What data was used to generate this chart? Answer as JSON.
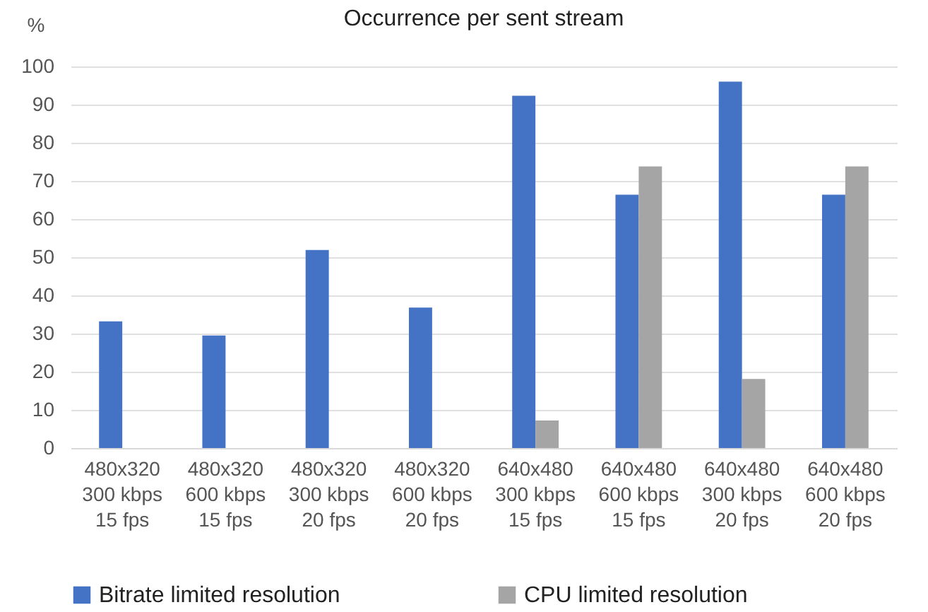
{
  "chart_data": {
    "type": "bar",
    "title": "Occurrence per sent stream",
    "ylabel": "%",
    "categories": [
      "480x320\n300 kbps\n15 fps",
      "480x320\n600 kbps\n15 fps",
      "480x320\n300 kbps\n20 fps",
      "480x320\n600 kbps\n20 fps",
      "640x480\n300 kbps\n15 fps",
      "640x480\n600 kbps\n15 fps",
      "640x480\n300 kbps\n20 fps",
      "640x480\n600 kbps\n20 fps"
    ],
    "series": [
      {
        "name": "Bitrate limited resolution",
        "color": "#4472c4",
        "values": [
          33.2,
          29.5,
          51.9,
          36.8,
          92.3,
          66.4,
          96,
          66.4
        ]
      },
      {
        "name": "CPU limited resolution",
        "color": "#a5a5a5",
        "values": [
          0,
          0,
          0,
          0,
          7.2,
          73.8,
          18.1,
          73.8
        ]
      }
    ],
    "ylim": [
      0,
      100
    ],
    "yticks": [
      0,
      10,
      20,
      30,
      40,
      50,
      60,
      70,
      80,
      90,
      100
    ],
    "grid": "y",
    "legend": "bottom"
  }
}
